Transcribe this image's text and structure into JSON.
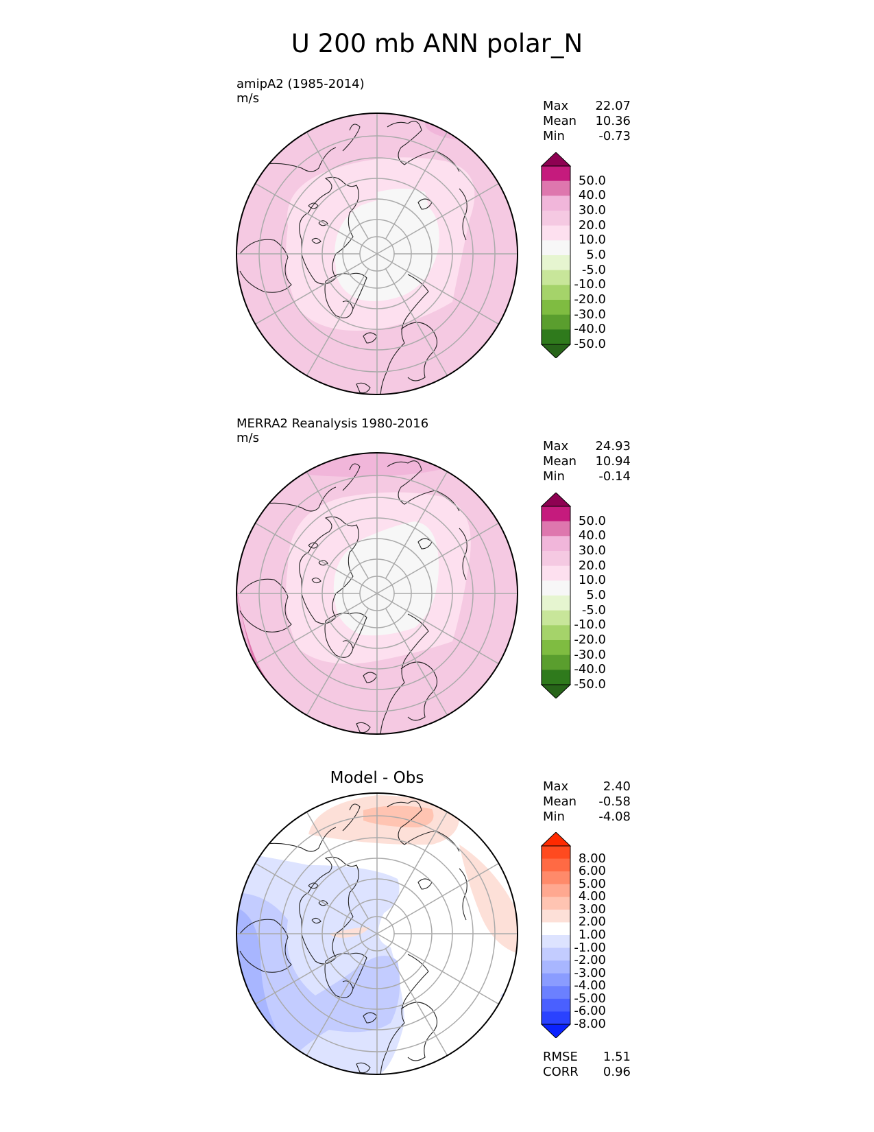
{
  "title": "U 200 mb ANN polar_N",
  "panels": [
    {
      "label_line1": "amipA2 (1985-2014)",
      "label_line2": "m/s",
      "stats": [
        {
          "name": "Max",
          "value": "22.07"
        },
        {
          "name": "Mean",
          "value": "10.36"
        },
        {
          "name": "Min",
          "value": "-0.73"
        }
      ]
    },
    {
      "label_line1": "MERRA2 Reanalysis 1980-2016",
      "label_line2": "m/s",
      "stats": [
        {
          "name": "Max",
          "value": "24.93"
        },
        {
          "name": "Mean",
          "value": "10.94"
        },
        {
          "name": "Min",
          "value": "-0.14"
        }
      ]
    },
    {
      "title": "Model - Obs",
      "stats": [
        {
          "name": "Max",
          "value": "2.40"
        },
        {
          "name": "Mean",
          "value": "-0.58"
        },
        {
          "name": "Min",
          "value": "-4.08"
        }
      ],
      "metrics": [
        {
          "name": "RMSE",
          "value": "1.51"
        },
        {
          "name": "CORR",
          "value": "0.96"
        }
      ]
    }
  ],
  "colorbar_field": {
    "labels": [
      "50.0",
      "40.0",
      "30.0",
      "20.0",
      "10.0",
      "5.0",
      "-5.0",
      "-10.0",
      "-20.0",
      "-30.0",
      "-40.0",
      "-50.0"
    ],
    "colors": [
      "#8e0152",
      "#c51b7d",
      "#de77ae",
      "#f1b6da",
      "#f5c9e2",
      "#fde0ef",
      "#f7f7f7",
      "#e6f5d0",
      "#c8e69a",
      "#a5d36a",
      "#7fbc41",
      "#5a9e2e",
      "#2f7a1c",
      "#276419"
    ]
  },
  "colorbar_diff": {
    "labels": [
      "8.00",
      "6.00",
      "5.00",
      "4.00",
      "3.00",
      "2.00",
      "1.00",
      "-1.00",
      "-2.00",
      "-3.00",
      "-4.00",
      "-5.00",
      "-6.00",
      "-8.00"
    ],
    "colors": [
      "#ff2a00",
      "#ff4a1f",
      "#ff6a44",
      "#ff8a6a",
      "#ffa890",
      "#ffc4b2",
      "#fde0d8",
      "#ffffff",
      "#dde3ff",
      "#c3ccff",
      "#a8b6ff",
      "#8a9cff",
      "#6b80ff",
      "#4a60ff",
      "#2a42ff",
      "#0a22ff"
    ]
  }
}
